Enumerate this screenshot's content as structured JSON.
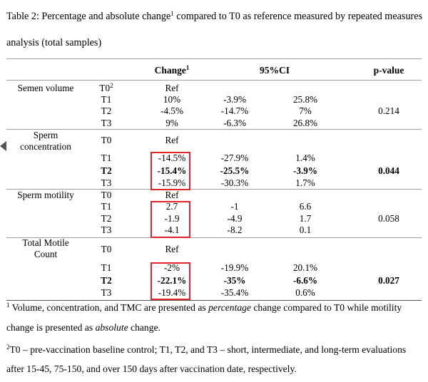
{
  "caption": {
    "text_a": "Table 2: Percentage and absolute change",
    "sup": "1",
    "text_b": " compared to T0 as reference measured by repeated measures analysis (total samples)"
  },
  "header": {
    "change": "Change",
    "change_sup": "1",
    "ci": "95%CI",
    "p": "p-value"
  },
  "groups": [
    {
      "label": "Semen volume",
      "rows": [
        {
          "t": "T0",
          "t_sup": "2",
          "change": "Ref",
          "lo": "",
          "hi": "",
          "bold": false
        },
        {
          "t": "T1",
          "change": "10%",
          "lo": "-3.9%",
          "hi": "25.8%",
          "bold": false
        },
        {
          "t": "T2",
          "change": "-4.5%",
          "lo": "-14.7%",
          "hi": "7%",
          "bold": false
        },
        {
          "t": "T3",
          "change": "9%",
          "lo": "-6.3%",
          "hi": "26.8%",
          "bold": false
        }
      ],
      "p": "0.214",
      "p_bold": false
    },
    {
      "label": "Sperm concentration",
      "rows": [
        {
          "t": "T0",
          "change": "Ref",
          "lo": "",
          "hi": "",
          "bold": false
        },
        {
          "t": "T1",
          "change": "-14.5%",
          "lo": "-27.9%",
          "hi": "1.4%",
          "bold": false
        },
        {
          "t": "T2",
          "change": "-15.4%",
          "lo": "-25.5%",
          "hi": "-3.9%",
          "bold": true
        },
        {
          "t": "T3",
          "change": "-15.9%",
          "lo": "-30.3%",
          "hi": "1.7%",
          "bold": false
        }
      ],
      "p": "0.044",
      "p_bold": true
    },
    {
      "label": "Sperm motility",
      "rows": [
        {
          "t": "T0",
          "change": "Ref",
          "lo": "",
          "hi": "",
          "bold": false
        },
        {
          "t": "T1",
          "change": "2.7",
          "lo": "-1",
          "hi": "6.6",
          "bold": false
        },
        {
          "t": "T2",
          "change": "-1.9",
          "lo": "-4.9",
          "hi": "1.7",
          "bold": false
        },
        {
          "t": "T3",
          "change": "-4.1",
          "lo": "-8.2",
          "hi": "0.1",
          "bold": false
        }
      ],
      "p": "0.058",
      "p_bold": false
    },
    {
      "label": "Total Motile Count",
      "rows": [
        {
          "t": "T0",
          "change": "Ref",
          "lo": "",
          "hi": "",
          "bold": false
        },
        {
          "t": "T1",
          "change": "-2%",
          "lo": "-19.9%",
          "hi": "20.1%",
          "bold": false
        },
        {
          "t": "T2",
          "change": "-22.1%",
          "lo": "-35%",
          "hi": "-6.6%",
          "bold": true
        },
        {
          "t": "T3",
          "change": "-19.4%",
          "lo": "-35.4%",
          "hi": "0.6%",
          "bold": false
        }
      ],
      "p": "0.027",
      "p_bold": true
    }
  ],
  "footnotes": {
    "f1_sup": "1",
    "f1_a": " Volume, concentration, and TMC are presented as ",
    "f1_em1": "percentage",
    "f1_b": " change compared to T0 while motility change is presented as ",
    "f1_em2": "absolute",
    "f1_c": " change.",
    "f2_sup": "2",
    "f2_text": "T0 – pre-vaccination baseline control; T1, T2, and T3 – short, intermediate, and long-term evaluations after 15-45, 75-150, and over 150 days after vaccination date, respectively."
  },
  "highlight_color": "#e0262c"
}
